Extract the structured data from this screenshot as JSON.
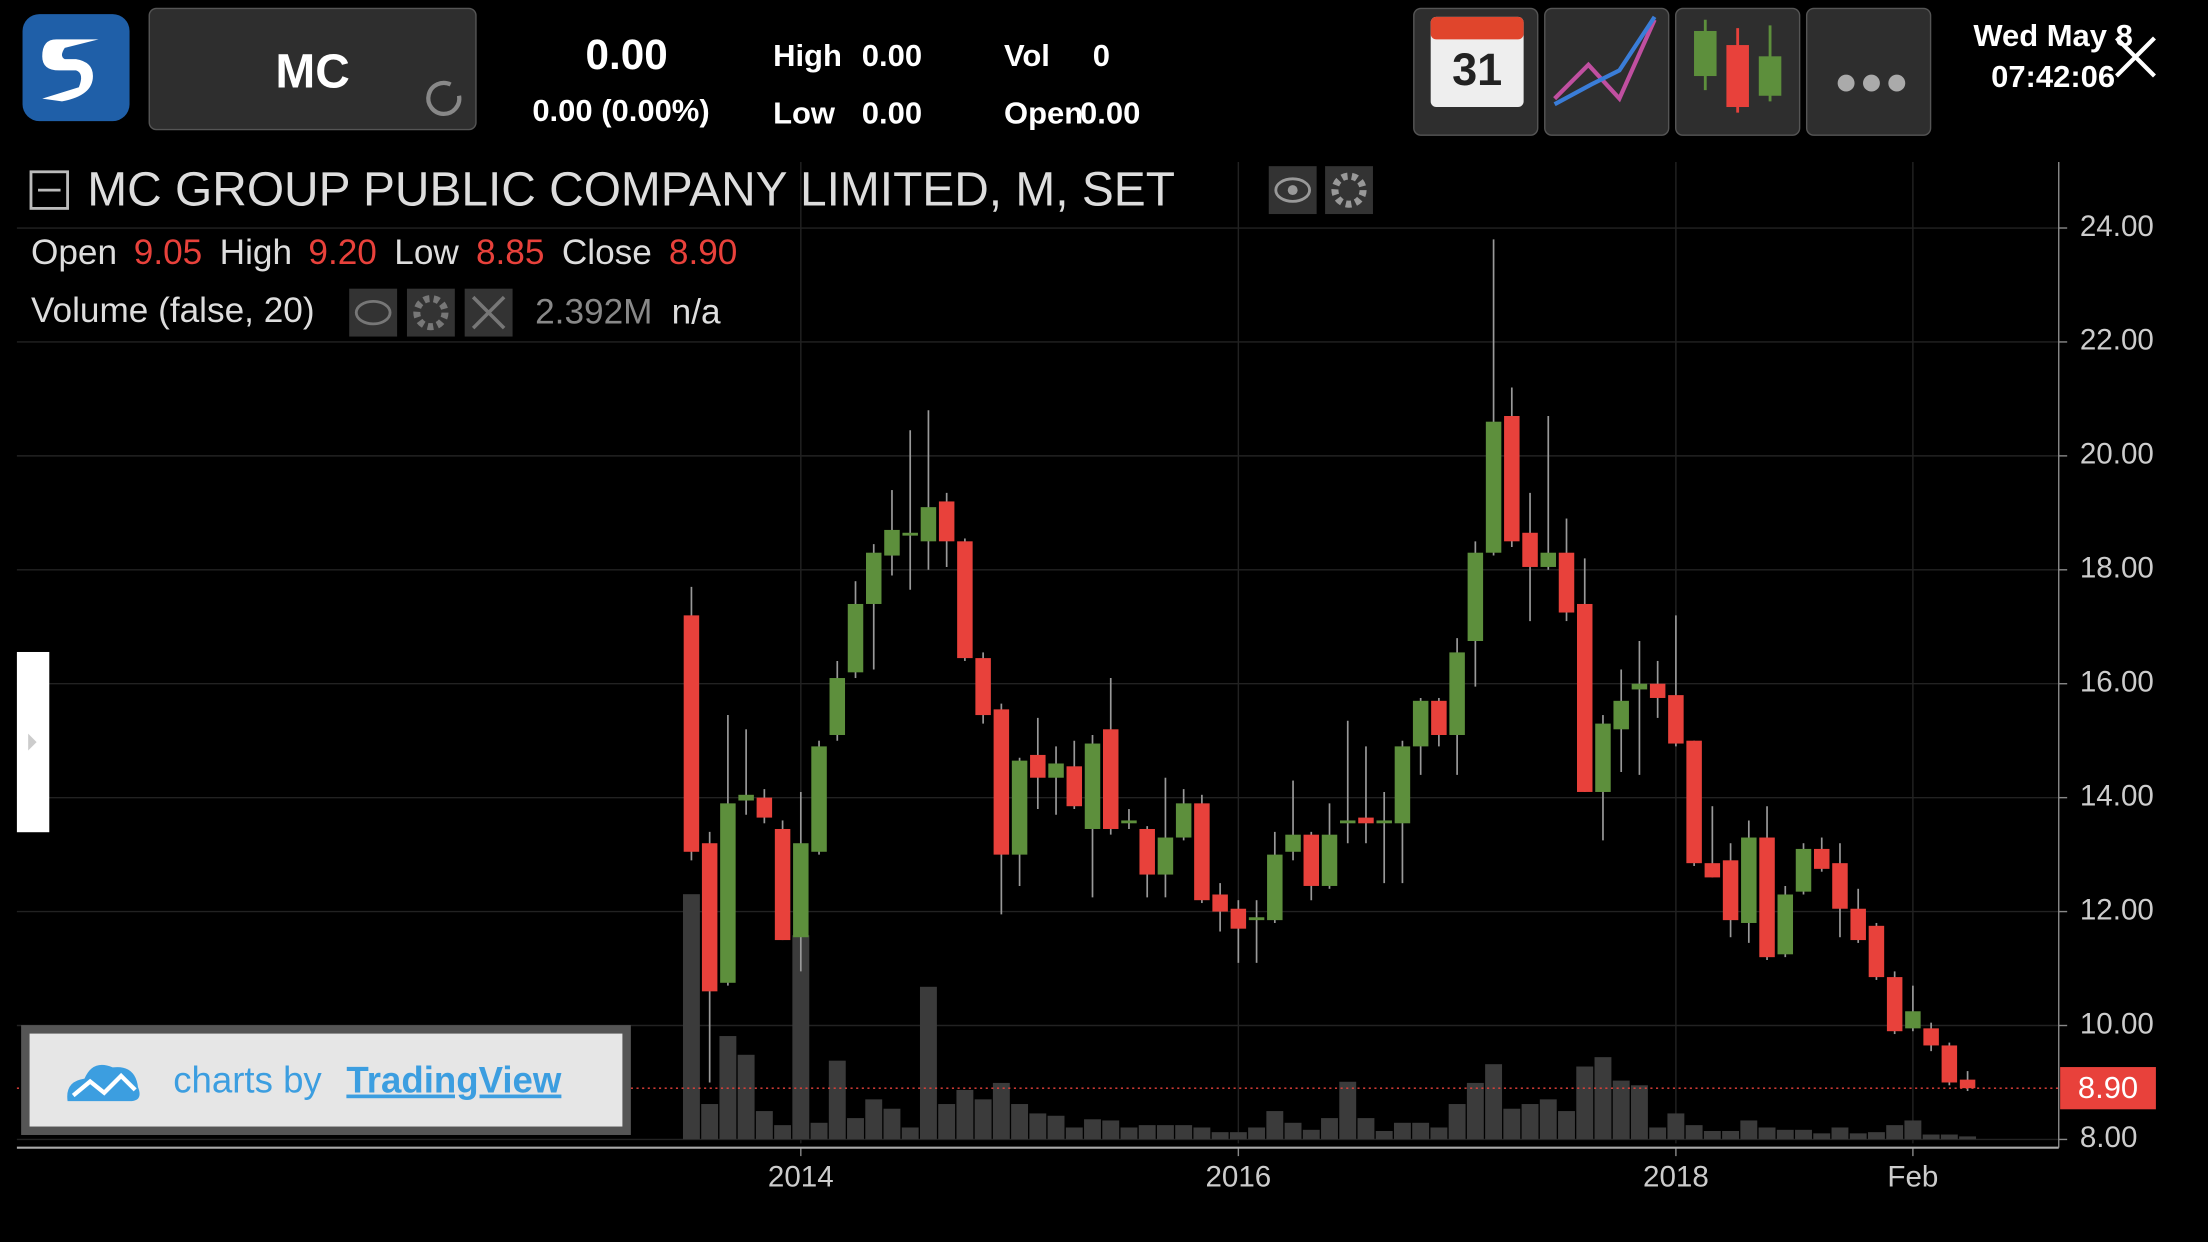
{
  "toolbar": {
    "symbol": "MC",
    "last": "0.00",
    "change": "0.00 (0.00%)",
    "stats": [
      {
        "label": "High",
        "value": "0.00"
      },
      {
        "label": "Low",
        "value": "0.00"
      },
      {
        "label": "Vol",
        "value": "0"
      },
      {
        "label": "Open",
        "value": "0.00"
      }
    ],
    "calendar_day": "31",
    "date": "Wed May 8",
    "time": "07:42:06"
  },
  "attribution": {
    "prefix": "charts by",
    "brand": "TradingView"
  },
  "chart_data": {
    "type": "candlestick",
    "title": "MC GROUP PUBLIC COMPANY LIMITED, M, SET",
    "legend": [
      {
        "label": "Open",
        "value": "9.05"
      },
      {
        "label": "High",
        "value": "9.20"
      },
      {
        "label": "Low",
        "value": "8.85"
      },
      {
        "label": "Close",
        "value": "8.90"
      }
    ],
    "x": [
      "2013-07",
      "2013-08",
      "2013-09",
      "2013-10",
      "2013-11",
      "2013-12",
      "2014-01",
      "2014-02",
      "2014-03",
      "2014-04",
      "2014-05",
      "2014-06",
      "2014-07",
      "2014-08",
      "2014-09",
      "2014-10",
      "2014-11",
      "2014-12",
      "2015-01",
      "2015-02",
      "2015-03",
      "2015-04",
      "2015-05",
      "2015-06",
      "2015-07",
      "2015-08",
      "2015-09",
      "2015-10",
      "2015-11",
      "2015-12",
      "2016-01",
      "2016-02",
      "2016-03",
      "2016-04",
      "2016-05",
      "2016-06",
      "2016-07",
      "2016-08",
      "2016-09",
      "2016-10",
      "2016-11",
      "2016-12",
      "2017-01",
      "2017-02",
      "2017-03",
      "2017-04",
      "2017-05",
      "2017-06",
      "2017-07",
      "2017-08",
      "2017-09",
      "2017-10",
      "2017-11",
      "2017-12",
      "2018-01",
      "2018-02",
      "2018-03",
      "2018-04",
      "2018-05",
      "2018-06",
      "2018-07",
      "2018-08",
      "2018-09",
      "2018-10",
      "2018-11",
      "2018-12",
      "2019-01",
      "2019-02",
      "2019-03",
      "2019-04",
      "2019-05"
    ],
    "open": [
      17.2,
      13.2,
      10.75,
      13.95,
      14.0,
      13.45,
      11.55,
      13.05,
      15.1,
      16.2,
      17.4,
      18.25,
      18.6,
      18.5,
      19.2,
      18.5,
      16.45,
      15.55,
      13.0,
      14.75,
      14.35,
      14.55,
      13.45,
      15.2,
      13.55,
      13.45,
      12.65,
      13.3,
      13.9,
      12.3,
      12.05,
      11.85,
      11.85,
      13.05,
      13.35,
      12.45,
      13.55,
      13.65,
      13.55,
      13.55,
      14.9,
      15.7,
      15.1,
      16.75,
      18.3,
      20.7,
      18.65,
      18.05,
      18.3,
      17.4,
      14.1,
      15.2,
      15.9,
      16.0,
      15.8,
      15.0,
      12.85,
      12.9,
      11.8,
      13.3,
      11.25,
      12.35,
      13.1,
      12.85,
      12.05,
      11.75,
      10.85,
      9.95,
      9.95,
      9.65,
      9.05
    ],
    "high": [
      17.7,
      13.4,
      15.45,
      15.2,
      14.15,
      13.6,
      14.1,
      15.0,
      16.4,
      17.8,
      18.45,
      19.4,
      20.45,
      20.8,
      19.35,
      18.55,
      16.55,
      15.65,
      14.7,
      15.4,
      14.9,
      15.0,
      15.1,
      16.1,
      13.8,
      13.5,
      14.35,
      14.15,
      14.05,
      12.5,
      12.2,
      12.2,
      13.4,
      14.3,
      13.4,
      13.9,
      15.35,
      14.9,
      14.1,
      15.0,
      15.75,
      15.75,
      16.8,
      18.5,
      23.8,
      21.2,
      19.35,
      20.7,
      18.9,
      18.2,
      15.45,
      16.25,
      16.75,
      16.4,
      17.2,
      15.0,
      13.85,
      13.2,
      13.6,
      13.85,
      12.45,
      13.2,
      13.3,
      13.2,
      12.4,
      11.8,
      10.95,
      10.7,
      10.05,
      9.7,
      9.2
    ],
    "low": [
      12.9,
      9.0,
      10.7,
      13.7,
      13.55,
      11.5,
      10.95,
      13.0,
      15.0,
      16.1,
      16.25,
      17.9,
      17.65,
      18.0,
      18.05,
      16.4,
      15.3,
      11.95,
      12.45,
      13.8,
      13.7,
      13.8,
      12.25,
      13.35,
      13.45,
      12.25,
      12.25,
      13.25,
      12.15,
      11.65,
      11.1,
      11.1,
      11.8,
      12.9,
      12.2,
      12.4,
      13.2,
      13.2,
      12.5,
      12.5,
      14.4,
      14.9,
      14.4,
      15.95,
      18.25,
      18.4,
      17.1,
      18.0,
      17.1,
      14.1,
      13.25,
      14.45,
      14.4,
      15.4,
      14.9,
      12.8,
      12.6,
      11.55,
      11.45,
      11.15,
      11.2,
      12.3,
      12.7,
      11.55,
      11.45,
      10.8,
      9.85,
      9.9,
      9.55,
      8.95,
      8.85
    ],
    "close": [
      13.05,
      10.6,
      13.9,
      14.05,
      13.65,
      11.5,
      13.2,
      14.9,
      16.1,
      17.4,
      18.3,
      18.7,
      18.65,
      19.1,
      18.5,
      16.45,
      15.45,
      13.0,
      14.65,
      14.35,
      14.6,
      13.85,
      14.95,
      13.45,
      13.6,
      12.65,
      13.3,
      13.9,
      12.2,
      12.0,
      11.7,
      11.9,
      13.0,
      13.35,
      12.45,
      13.35,
      13.6,
      13.55,
      13.6,
      14.9,
      15.7,
      15.1,
      16.55,
      18.3,
      20.6,
      18.5,
      18.05,
      18.3,
      17.25,
      14.1,
      15.3,
      15.7,
      16.0,
      15.75,
      14.95,
      12.85,
      12.6,
      11.85,
      13.3,
      11.2,
      12.3,
      13.1,
      12.75,
      12.05,
      11.5,
      10.85,
      9.9,
      10.25,
      9.65,
      9.0,
      8.9
    ],
    "volume": {
      "name": "Volume (false, 20)",
      "label": "2.392M",
      "note": "n/a",
      "color": "#3b3b3b",
      "values": [
        209,
        30,
        88,
        72,
        24,
        12,
        174,
        14,
        67,
        18,
        34,
        26,
        10,
        130,
        30,
        42,
        34,
        48,
        30,
        22,
        20,
        10,
        17,
        16,
        10,
        12,
        12,
        12,
        10,
        6,
        6,
        10,
        24,
        14,
        8,
        18,
        49,
        18,
        7,
        14,
        14,
        10,
        30,
        48,
        64,
        26,
        30,
        34,
        24,
        62,
        70,
        50,
        46,
        10,
        22,
        12,
        7,
        7,
        16,
        10,
        8,
        8,
        5,
        10,
        5,
        6,
        12,
        16,
        4,
        4,
        2.392
      ]
    },
    "up_color": "#5d8f3c",
    "down_color": "#e8413b",
    "price_line": {
      "value": 8.9,
      "label": "8.90",
      "color": "#e8413b"
    },
    "xlim": [
      "2010-06",
      "2019-10"
    ],
    "xticks": [
      {
        "value": "2014-01",
        "label": "2014"
      },
      {
        "value": "2016-01",
        "label": "2016"
      },
      {
        "value": "2018-01",
        "label": "2018"
      },
      {
        "value": "2019-02",
        "label": "Feb"
      }
    ],
    "ylim": [
      7.93,
      25.16
    ],
    "yticks": [
      {
        "value": 8,
        "label": "8.00"
      },
      {
        "value": 10,
        "label": "10.00"
      },
      {
        "value": 12,
        "label": "12.00"
      },
      {
        "value": 14,
        "label": "14.00"
      },
      {
        "value": 16,
        "label": "16.00"
      },
      {
        "value": 18,
        "label": "18.00"
      },
      {
        "value": 20,
        "label": "20.00"
      },
      {
        "value": 22,
        "label": "22.00"
      },
      {
        "value": 24,
        "label": "24.00"
      }
    ],
    "grid": true
  }
}
